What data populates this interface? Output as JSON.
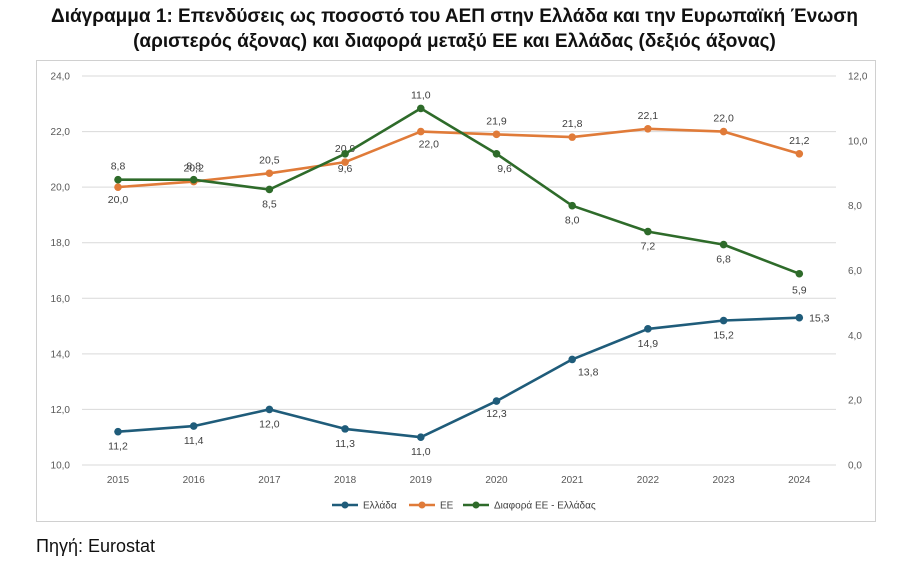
{
  "title_line1": "Διάγραμμα 1: Επενδύσεις ως ποσοστό του ΑΕΠ στην Ελλάδα και την Ευρωπαϊκή Ένωση",
  "title_line2": "(αριστερός άξονας) και διαφορά μεταξύ ΕΕ και Ελλάδας (δεξιός άξονας)",
  "source": "Πηγή: Eurostat",
  "chart_data": {
    "type": "line",
    "title": "Διάγραμμα 1: Επενδύσεις ως ποσοστό του ΑΕΠ στην Ελλάδα και την Ευρωπαϊκή Ένωση (αριστερός άξονας) και διαφορά μεταξύ ΕΕ και Ελλάδας (δεξιός άξονας)",
    "x": [
      "2015",
      "2016",
      "2017",
      "2018",
      "2019",
      "2020",
      "2021",
      "2022",
      "2023",
      "2024"
    ],
    "y_left_lim": [
      10.0,
      24.0
    ],
    "y_right_lim": [
      0.0,
      12.0
    ],
    "y_left_ticks": [
      "10,0",
      "12,0",
      "14,0",
      "16,0",
      "18,0",
      "20,0",
      "22,0",
      "24,0"
    ],
    "y_right_ticks": [
      "0,0",
      "2,0",
      "4,0",
      "6,0",
      "8,0",
      "10,0",
      "12,0"
    ],
    "grid": true,
    "legend_position": "bottom",
    "series": [
      {
        "name": "Ελλάδα",
        "axis": "left",
        "color": "#1f5c7a",
        "values": [
          11.2,
          11.4,
          12.0,
          11.3,
          11.0,
          12.3,
          13.8,
          14.9,
          15.2,
          15.3
        ],
        "labels": [
          "11,2",
          "11,4",
          "12,0",
          "11,3",
          "11,0",
          "12,3",
          "13,8",
          "14,9",
          "15,2",
          "15,3"
        ]
      },
      {
        "name": "ΕΕ",
        "axis": "left",
        "color": "#e07b39",
        "values": [
          20.0,
          20.2,
          20.5,
          20.9,
          22.0,
          21.9,
          21.8,
          22.1,
          22.0,
          21.2
        ],
        "labels": [
          "20,0",
          "20,2",
          "20,5",
          "20,9",
          "22,0",
          "21,9",
          "21,8",
          "22,1",
          "22,0",
          "21,2"
        ]
      },
      {
        "name": "Διαφορά ΕΕ - Ελλάδας",
        "axis": "right",
        "color": "#2e6b2a",
        "values": [
          8.8,
          8.8,
          8.5,
          9.6,
          11.0,
          9.6,
          8.0,
          7.2,
          6.8,
          5.9
        ],
        "labels": [
          "8,8",
          "8,8",
          "8,5",
          "9,6",
          "11,0",
          "9,6",
          "8,0",
          "7,2",
          "6,8",
          "5,9"
        ]
      }
    ]
  }
}
